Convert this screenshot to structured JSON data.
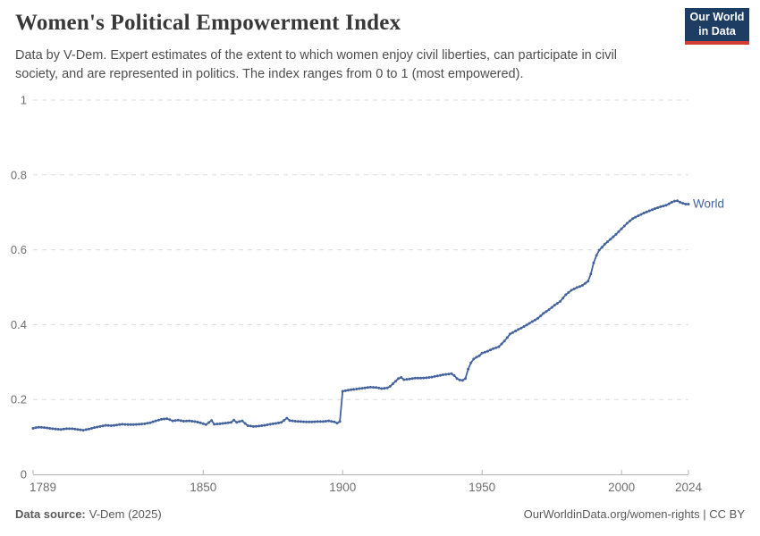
{
  "header": {
    "title": "Women's Political Empowerment Index",
    "subtitle": "Data by V-Dem. Expert estimates of the extent to which women enjoy civil liberties, can participate in civil society, and are represented in politics. The index ranges from 0 to 1 (most empowered).",
    "logo": {
      "line1": "Our World",
      "line2": "in Data",
      "bg_color": "#1d3d63",
      "accent_color": "#d13d32"
    }
  },
  "footer": {
    "source_label": "Data source:",
    "source_value": "V-Dem (2025)",
    "credit": "OurWorldinData.org/women-rights | CC BY"
  },
  "chart_data": {
    "type": "line",
    "title": "Women's Political Empowerment Index",
    "series_label": "World",
    "line_color": "#44639c",
    "grid": true,
    "x_range": [
      1789,
      2024
    ],
    "ylim": [
      0,
      1
    ],
    "x_ticks": [
      1789,
      1850,
      1900,
      1950,
      2000,
      2024
    ],
    "y_ticks": [
      0,
      0.2,
      0.4,
      0.6,
      0.8,
      1
    ],
    "y_tick_labels": [
      "0",
      "0.2",
      "0.4",
      "0.6",
      "0.8",
      "1"
    ],
    "xlabel": "",
    "ylabel": "",
    "points": [
      [
        1789,
        0.123
      ],
      [
        1791,
        0.126
      ],
      [
        1793,
        0.125
      ],
      [
        1795,
        0.123
      ],
      [
        1797,
        0.121
      ],
      [
        1799,
        0.12
      ],
      [
        1801,
        0.122
      ],
      [
        1803,
        0.122
      ],
      [
        1805,
        0.12
      ],
      [
        1807,
        0.118
      ],
      [
        1809,
        0.121
      ],
      [
        1811,
        0.125
      ],
      [
        1813,
        0.128
      ],
      [
        1815,
        0.131
      ],
      [
        1817,
        0.13
      ],
      [
        1819,
        0.132
      ],
      [
        1821,
        0.134
      ],
      [
        1823,
        0.133
      ],
      [
        1825,
        0.133
      ],
      [
        1827,
        0.134
      ],
      [
        1829,
        0.135
      ],
      [
        1831,
        0.138
      ],
      [
        1833,
        0.143
      ],
      [
        1835,
        0.147
      ],
      [
        1837,
        0.149
      ],
      [
        1839,
        0.143
      ],
      [
        1841,
        0.145
      ],
      [
        1843,
        0.142
      ],
      [
        1845,
        0.143
      ],
      [
        1847,
        0.141
      ],
      [
        1849,
        0.138
      ],
      [
        1851,
        0.133
      ],
      [
        1853,
        0.144
      ],
      [
        1854,
        0.134
      ],
      [
        1856,
        0.135
      ],
      [
        1858,
        0.137
      ],
      [
        1860,
        0.139
      ],
      [
        1861,
        0.145
      ],
      [
        1862,
        0.139
      ],
      [
        1863,
        0.141
      ],
      [
        1864,
        0.143
      ],
      [
        1865,
        0.136
      ],
      [
        1866,
        0.13
      ],
      [
        1868,
        0.128
      ],
      [
        1870,
        0.129
      ],
      [
        1872,
        0.131
      ],
      [
        1874,
        0.134
      ],
      [
        1876,
        0.136
      ],
      [
        1878,
        0.139
      ],
      [
        1880,
        0.15
      ],
      [
        1881,
        0.144
      ],
      [
        1883,
        0.142
      ],
      [
        1885,
        0.141
      ],
      [
        1887,
        0.14
      ],
      [
        1889,
        0.14
      ],
      [
        1891,
        0.141
      ],
      [
        1893,
        0.141
      ],
      [
        1895,
        0.143
      ],
      [
        1897,
        0.14
      ],
      [
        1898,
        0.137
      ],
      [
        1899,
        0.141
      ],
      [
        1900,
        0.222
      ],
      [
        1902,
        0.225
      ],
      [
        1904,
        0.227
      ],
      [
        1906,
        0.229
      ],
      [
        1908,
        0.231
      ],
      [
        1910,
        0.233
      ],
      [
        1912,
        0.232
      ],
      [
        1914,
        0.229
      ],
      [
        1916,
        0.231
      ],
      [
        1917,
        0.235
      ],
      [
        1918,
        0.242
      ],
      [
        1919,
        0.249
      ],
      [
        1920,
        0.256
      ],
      [
        1921,
        0.259
      ],
      [
        1922,
        0.253
      ],
      [
        1924,
        0.255
      ],
      [
        1926,
        0.257
      ],
      [
        1928,
        0.257
      ],
      [
        1930,
        0.258
      ],
      [
        1932,
        0.26
      ],
      [
        1934,
        0.263
      ],
      [
        1936,
        0.266
      ],
      [
        1938,
        0.268
      ],
      [
        1939,
        0.269
      ],
      [
        1940,
        0.264
      ],
      [
        1941,
        0.256
      ],
      [
        1942,
        0.252
      ],
      [
        1943,
        0.251
      ],
      [
        1944,
        0.256
      ],
      [
        1945,
        0.281
      ],
      [
        1946,
        0.298
      ],
      [
        1947,
        0.308
      ],
      [
        1948,
        0.313
      ],
      [
        1949,
        0.317
      ],
      [
        1950,
        0.324
      ],
      [
        1952,
        0.329
      ],
      [
        1954,
        0.336
      ],
      [
        1956,
        0.341
      ],
      [
        1958,
        0.356
      ],
      [
        1960,
        0.375
      ],
      [
        1962,
        0.383
      ],
      [
        1964,
        0.391
      ],
      [
        1966,
        0.399
      ],
      [
        1968,
        0.408
      ],
      [
        1970,
        0.417
      ],
      [
        1972,
        0.43
      ],
      [
        1974,
        0.44
      ],
      [
        1976,
        0.452
      ],
      [
        1978,
        0.462
      ],
      [
        1980,
        0.48
      ],
      [
        1982,
        0.492
      ],
      [
        1984,
        0.499
      ],
      [
        1986,
        0.505
      ],
      [
        1988,
        0.516
      ],
      [
        1989,
        0.535
      ],
      [
        1990,
        0.565
      ],
      [
        1991,
        0.585
      ],
      [
        1992,
        0.599
      ],
      [
        1994,
        0.615
      ],
      [
        1996,
        0.628
      ],
      [
        1998,
        0.641
      ],
      [
        2000,
        0.656
      ],
      [
        2002,
        0.671
      ],
      [
        2004,
        0.683
      ],
      [
        2006,
        0.691
      ],
      [
        2008,
        0.698
      ],
      [
        2010,
        0.704
      ],
      [
        2012,
        0.71
      ],
      [
        2014,
        0.715
      ],
      [
        2016,
        0.719
      ],
      [
        2018,
        0.727
      ],
      [
        2019,
        0.73
      ],
      [
        2020,
        0.731
      ],
      [
        2021,
        0.727
      ],
      [
        2022,
        0.724
      ],
      [
        2023,
        0.722
      ],
      [
        2024,
        0.722
      ]
    ]
  }
}
